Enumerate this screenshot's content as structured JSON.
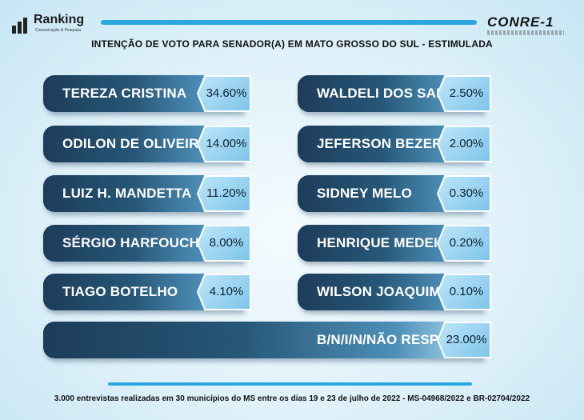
{
  "header": {
    "brand_left": "Ranking",
    "brand_left_tagline": "Comunicação & Pesquisa",
    "brand_right": "CONRE-1",
    "title": "INTENÇÃO DE VOTO PARA SENADOR(A) EM MATO GROSSO DO SUL - ESTIMULADA"
  },
  "chart_data": {
    "type": "bar",
    "title": "INTENÇÃO DE VOTO PARA SENADOR(A) EM MATO GROSSO DO SUL - ESTIMULADA",
    "categories": [
      "TEREZA CRISTINA",
      "ODILON DE OLIVEIRA",
      "LUIZ H. MANDETTA",
      "SÉRGIO HARFOUCHE",
      "TIAGO BOTELHO",
      "WALDELI DOS SANTOS",
      "JEFERSON BEZERRA",
      "SIDNEY MELO",
      "HENRIQUE MEDEIROS",
      "WILSON JOAQUIM",
      "B/N/I/N/NÃO RESP."
    ],
    "values": [
      34.6,
      14.0,
      11.2,
      8.0,
      4.1,
      2.5,
      2.0,
      0.3,
      0.2,
      0.1,
      23.0
    ],
    "value_labels": [
      "34.60%",
      "14.00%",
      "11.20%",
      "8.00%",
      "4.10%",
      "2.50%",
      "2.00%",
      "0.30%",
      "0.20%",
      "0.10%",
      "23.00%"
    ],
    "unit": "%",
    "colors": {
      "bar_dark": "#1d3c5a",
      "bar_light": "#b7e2f6",
      "badge": "#7ec5ea",
      "accent_rule": "#2aa7de"
    }
  },
  "footer": {
    "note": "3.000 entrevistas realizadas em 30 municípios do MS entre os dias 19 e 23 de julho de 2022 - MS-04968/2022 e BR-02704/2022"
  }
}
